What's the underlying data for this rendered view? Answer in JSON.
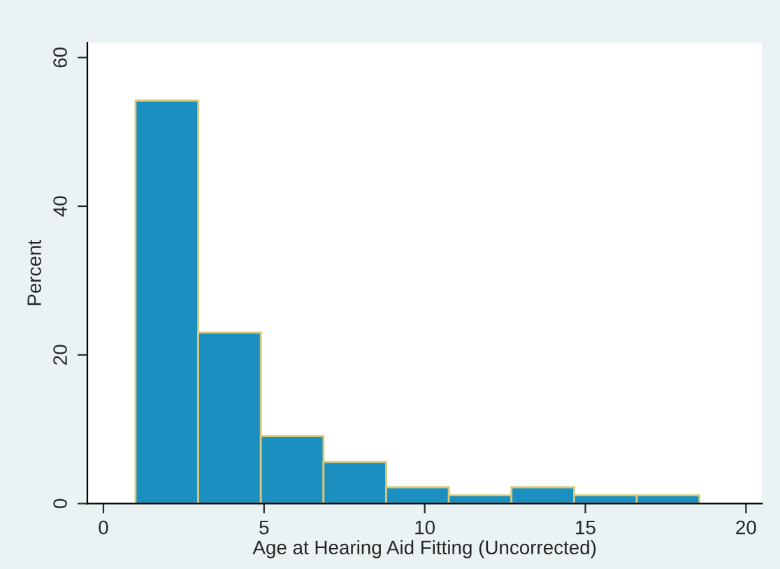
{
  "chart_data": {
    "type": "histogram",
    "xlabel": "Age at Hearing Aid Fitting (Uncorrected)",
    "ylabel": "Percent",
    "bins": [
      1.0,
      2.95,
      4.9,
      6.85,
      8.8,
      10.75,
      12.7,
      14.65,
      16.6,
      18.55
    ],
    "values": [
      54.2,
      23.0,
      9.1,
      5.6,
      2.2,
      1.1,
      2.2,
      1.1,
      1.1
    ],
    "color": "#1a8fc0",
    "xlim": [
      -0.5,
      20.5
    ],
    "xticks": [
      0,
      5,
      10,
      15,
      20
    ],
    "ylim": [
      0,
      62
    ],
    "yticks": [
      0,
      20,
      40,
      60
    ],
    "grid": false
  }
}
